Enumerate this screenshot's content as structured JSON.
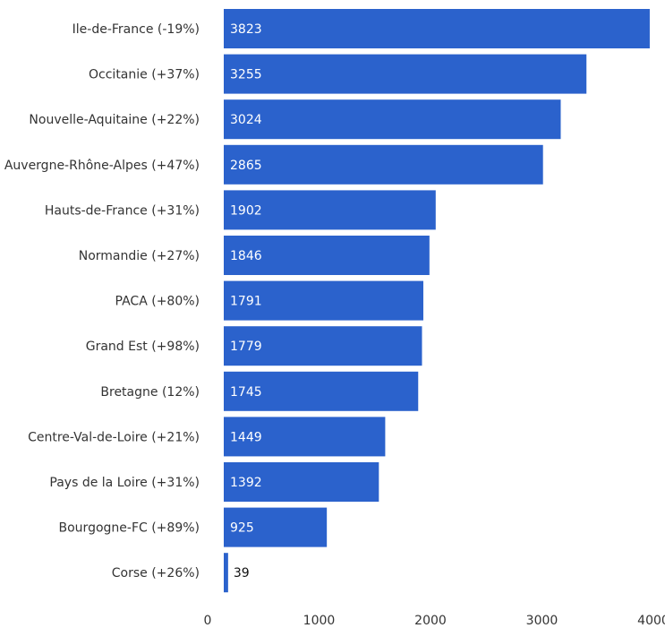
{
  "colors": {
    "bar": "#2b62cc",
    "label_inside": "#ffffff",
    "label_outside": "#111111",
    "text": "#333333",
    "baseline": "#999999"
  },
  "chart_data": {
    "type": "bar",
    "orientation": "horizontal",
    "categories": [
      "Ile-de-France (-19%)",
      "Occitanie (+37%)",
      "Nouvelle-Aquitaine (+22%)",
      "Auvergne-Rhône-Alpes (+47%)",
      "Hauts-de-France (+31%)",
      "Normandie (+27%)",
      "PACA (+80%)",
      "Grand Est (+98%)",
      "Bretagne (12%)",
      "Centre-Val-de-Loire (+21%)",
      "Pays de la Loire (+31%)",
      "Bourgogne-FC (+89%)",
      "Corse (+26%)"
    ],
    "values": [
      3823,
      3255,
      3024,
      2865,
      1902,
      1846,
      1791,
      1779,
      1745,
      1449,
      1392,
      925,
      39
    ],
    "xlim": [
      0,
      4000
    ],
    "xticks": [
      0,
      1000,
      2000,
      3000,
      4000
    ],
    "title": "",
    "xlabel": "",
    "ylabel": "",
    "grid": false,
    "legend": "none"
  }
}
